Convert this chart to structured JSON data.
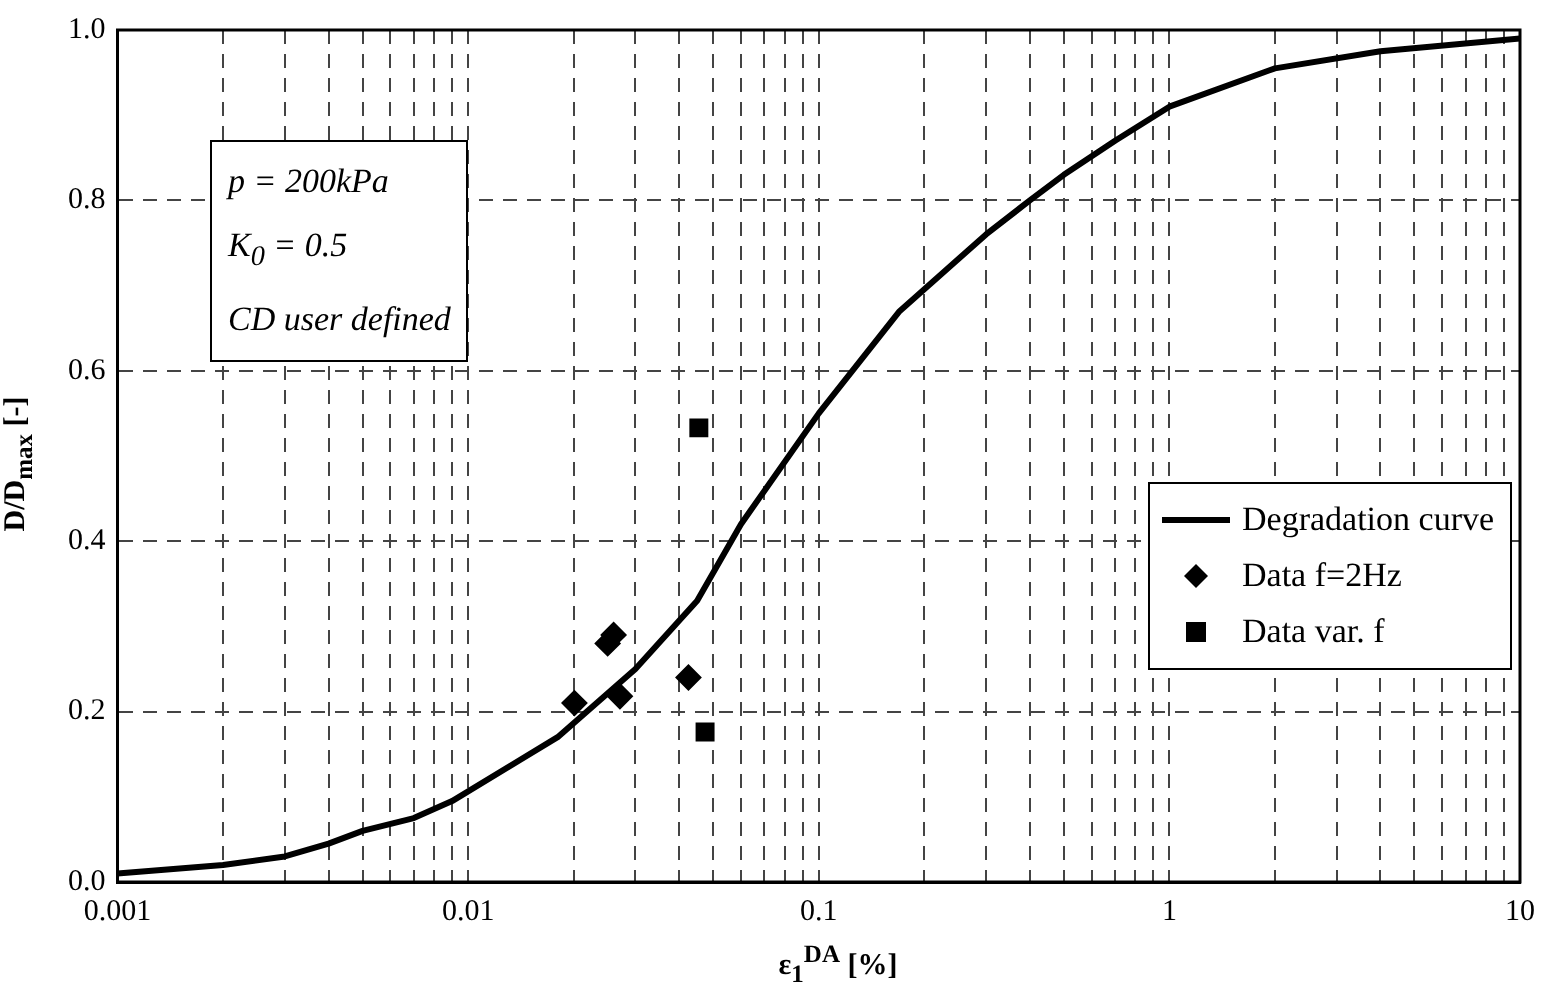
{
  "chart_data": {
    "type": "scatter",
    "xlabel": "ε$_{1}$$^{DA}$ [%]",
    "ylabel": "D/D$_{max}$ [-]",
    "log": "x",
    "grid": true,
    "legend": "right",
    "xlim": [
      0.001,
      10
    ],
    "xticks": [
      0.001,
      {
        "value": 0.002,
        "label": null
      },
      {
        "value": 0.003,
        "label": null
      },
      {
        "value": 0.004,
        "label": null
      },
      {
        "value": 0.005,
        "label": null
      },
      {
        "value": 0.006,
        "label": null
      },
      {
        "value": 0.007,
        "label": null
      },
      {
        "value": 0.008,
        "label": null
      },
      {
        "value": 0.009,
        "label": null
      },
      0.01,
      {
        "value": 0.02,
        "label": null
      },
      {
        "value": 0.03,
        "label": null
      },
      {
        "value": 0.04,
        "label": null
      },
      {
        "value": 0.05,
        "label": null
      },
      {
        "value": 0.06,
        "label": null
      },
      {
        "value": 0.07,
        "label": null
      },
      {
        "value": 0.08,
        "label": null
      },
      {
        "value": 0.09,
        "label": null
      },
      0.1,
      {
        "value": 0.2,
        "label": null
      },
      {
        "value": 0.3,
        "label": null
      },
      {
        "value": 0.4,
        "label": null
      },
      {
        "value": 0.5,
        "label": null
      },
      {
        "value": 0.6,
        "label": null
      },
      {
        "value": 0.7,
        "label": null
      },
      {
        "value": 0.8,
        "label": null
      },
      {
        "value": 0.9,
        "label": null
      },
      1,
      {
        "value": 2,
        "label": null
      },
      {
        "value": 3,
        "label": null
      },
      {
        "value": 4,
        "label": null
      },
      {
        "value": 5,
        "label": null
      },
      {
        "value": 6,
        "label": null
      },
      {
        "value": 7,
        "label": null
      },
      {
        "value": 8,
        "label": null
      },
      {
        "value": 9,
        "label": null
      },
      10
    ],
    "ylim": [
      0,
      1
    ],
    "yticks": [
      {
        "value": 0,
        "label": "0.0"
      },
      0.2,
      0.4,
      0.6,
      0.8,
      {
        "value": 1,
        "label": "1.0"
      }
    ],
    "annotations": [
      "p = 200kPa",
      "K$_{0}$ = 0.5",
      "CD user defined"
    ],
    "series": [
      {
        "name": "Degradation curve",
        "type": "line",
        "marker": "none",
        "color": "#000000",
        "x": [
          0.001,
          0.002,
          0.003,
          0.004,
          0.005,
          0.007,
          0.009,
          0.018,
          0.03,
          0.045,
          0.06,
          0.1,
          0.17,
          0.3,
          0.4,
          0.5,
          0.7,
          1,
          2,
          4,
          10
        ],
        "values": [
          0.01,
          0.02,
          0.03,
          0.045,
          0.06,
          0.075,
          0.095,
          0.17,
          0.25,
          0.33,
          0.42,
          0.55,
          0.67,
          0.76,
          0.8,
          0.83,
          0.87,
          0.91,
          0.955,
          0.975,
          0.99
        ]
      },
      {
        "name": "Data f=2Hz",
        "marker": "diamond",
        "color": "#000000",
        "x": [
          0.0201,
          0.025,
          0.026,
          0.0271,
          0.0425
        ],
        "values": [
          0.21,
          0.28,
          0.29,
          0.218,
          0.24
        ]
      },
      {
        "name": "Data var. f",
        "marker": "square",
        "color": "#000000",
        "x": [
          0.0455,
          0.0474
        ],
        "values": [
          0.533,
          0.176
        ]
      }
    ]
  }
}
